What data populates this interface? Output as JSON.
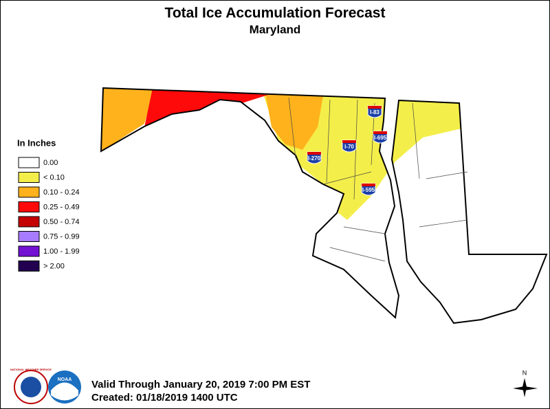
{
  "header": {
    "title": "Total Ice Accumulation Forecast",
    "subtitle": "Maryland"
  },
  "legend": {
    "title": "In Inches",
    "items": [
      {
        "label": "0.00",
        "color": "#ffffff"
      },
      {
        "label": "< 0.10",
        "color": "#f4ee4a"
      },
      {
        "label": "0.10 - 0.24",
        "color": "#ffb21c"
      },
      {
        "label": "0.25 - 0.49",
        "color": "#ff0a0a"
      },
      {
        "label": "0.50 - 0.74",
        "color": "#c40000"
      },
      {
        "label": "0.75 - 0.99",
        "color": "#a77bff"
      },
      {
        "label": "1.00 - 1.99",
        "color": "#7412d4"
      },
      {
        "label": "> 2.00",
        "color": "#22004f"
      }
    ]
  },
  "map": {
    "interstates": [
      "I-83",
      "I-695",
      "I-70",
      "I-270",
      "I-595"
    ]
  },
  "footer": {
    "valid": "Valid Through January 20, 2019 7:00 PM EST",
    "created": "Created: 01/18/2019 1400 UTC"
  },
  "logos": {
    "nws": "NATIONAL WEATHER SERVICE",
    "noaa": "NOAA"
  },
  "compass": "N"
}
